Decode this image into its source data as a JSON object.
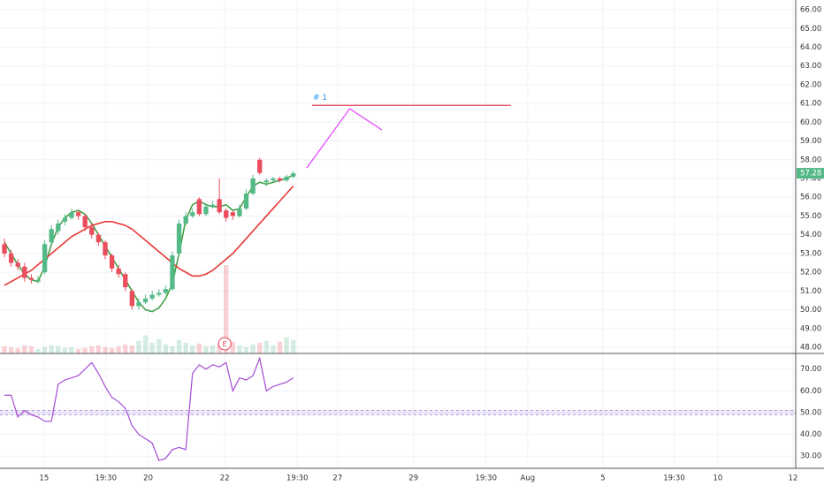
{
  "chart_data": [
    {
      "type": "candlestick",
      "xlim": [
        -0.66,
        117.8
      ],
      "xticks": [
        {
          "value": 5.9,
          "label": "15"
        },
        {
          "value": 15.1,
          "label": "19:30"
        },
        {
          "value": 21.4,
          "label": "20"
        },
        {
          "value": 32.8,
          "label": "22"
        },
        {
          "value": 43.6,
          "label": "19:30"
        },
        {
          "value": 49.6,
          "label": "27"
        },
        {
          "value": 60.9,
          "label": "29"
        },
        {
          "value": 71.7,
          "label": "19:30"
        },
        {
          "value": 77.9,
          "label": "Aug"
        },
        {
          "value": 89.1,
          "label": "5"
        },
        {
          "value": 99.7,
          "label": "19:30"
        },
        {
          "value": 106.2,
          "label": "10"
        },
        {
          "value": 117.4,
          "label": "12"
        }
      ],
      "ylim": [
        47.67,
        66.52
      ],
      "yticks": [
        {
          "value": 66,
          "label": "66.00"
        },
        {
          "value": 65,
          "label": "65.00"
        },
        {
          "value": 64,
          "label": "64.00"
        },
        {
          "value": 63,
          "label": "63.00"
        },
        {
          "value": 62,
          "label": "62.00"
        },
        {
          "value": 61,
          "label": "61.00"
        },
        {
          "value": 60,
          "label": "60.00"
        },
        {
          "value": 59,
          "label": "59.00"
        },
        {
          "value": 58,
          "label": "58.00"
        },
        {
          "value": 57,
          "label": "57.00"
        },
        {
          "value": 56,
          "label": "56.00"
        },
        {
          "value": 55,
          "label": "55.00"
        },
        {
          "value": 54,
          "label": "54.00"
        },
        {
          "value": 53,
          "label": "53.00"
        },
        {
          "value": 52,
          "label": "52.00"
        },
        {
          "value": 51,
          "label": "51.00"
        },
        {
          "value": 50,
          "label": "50.00"
        },
        {
          "value": 49,
          "label": "49.00"
        },
        {
          "value": 48,
          "label": "48.00"
        }
      ],
      "grid": true,
      "up_color": "#53b987",
      "down_color": "#eb4d5c",
      "open": [
        53.5,
        53.0,
        52.5,
        52.3,
        51.7,
        51.5,
        52.0,
        53.6,
        54.2,
        54.7,
        54.9,
        55.2,
        55.0,
        54.4,
        54.0,
        53.6,
        52.9,
        52.2,
        51.9,
        51.0,
        50.2,
        50.4,
        50.6,
        50.8,
        50.9,
        51.1,
        53.0,
        54.6,
        55.0,
        55.9,
        55.1,
        55.5,
        55.9,
        55.3,
        55.2,
        55.0,
        55.4,
        56.2,
        58.0,
        56.8,
        56.9,
        57.0,
        56.9,
        57.1
      ],
      "high": [
        53.8,
        53.2,
        52.7,
        52.5,
        51.9,
        51.8,
        53.7,
        54.5,
        54.8,
        55.1,
        55.4,
        55.3,
        55.1,
        54.6,
        54.1,
        53.7,
        53.0,
        52.4,
        52.0,
        51.1,
        50.6,
        50.8,
        51.0,
        51.1,
        51.3,
        53.1,
        54.8,
        55.2,
        55.4,
        56.0,
        55.7,
        55.8,
        57.0,
        55.4,
        55.3,
        55.6,
        56.4,
        57.2,
        58.1,
        57.0,
        57.1,
        57.1,
        57.2,
        57.4
      ],
      "low": [
        52.8,
        52.3,
        52.1,
        51.5,
        51.4,
        51.4,
        51.9,
        53.5,
        54.0,
        54.5,
        54.8,
        54.8,
        54.2,
        53.8,
        53.4,
        52.7,
        52.0,
        51.7,
        51.0,
        50.0,
        50.0,
        50.3,
        50.5,
        50.7,
        50.8,
        51.0,
        52.9,
        54.5,
        54.9,
        55.0,
        55.0,
        55.4,
        55.1,
        54.7,
        54.8,
        54.9,
        55.3,
        56.1,
        57.2,
        56.6,
        56.8,
        56.8,
        56.8,
        57.0
      ],
      "close": [
        53.0,
        52.5,
        52.3,
        51.7,
        51.6,
        51.6,
        53.5,
        54.3,
        54.6,
        54.9,
        55.2,
        55.0,
        54.4,
        54.0,
        53.6,
        52.9,
        52.2,
        51.9,
        51.2,
        50.2,
        50.4,
        50.6,
        50.8,
        50.9,
        51.1,
        52.9,
        54.6,
        55.0,
        55.2,
        55.1,
        55.5,
        55.6,
        55.2,
        54.9,
        55.0,
        55.4,
        56.2,
        57.0,
        57.3,
        56.9,
        57.0,
        56.9,
        57.1,
        57.28
      ],
      "volume": [
        0.8,
        0.7,
        0.6,
        0.9,
        0.8,
        0.5,
        0.7,
        0.9,
        0.8,
        0.6,
        0.7,
        0.5,
        0.6,
        0.8,
        0.9,
        0.7,
        0.6,
        0.8,
        1.0,
        0.9,
        1.4,
        2.0,
        1.2,
        1.6,
        1.0,
        0.8,
        1.5,
        1.2,
        0.9,
        1.1,
        0.8,
        0.9,
        1.0,
        9.8,
        1.3,
        0.9,
        0.7,
        1.0,
        1.2,
        1.4,
        0.9,
        1.3,
        1.8,
        1.5
      ],
      "moving_averages": [
        {
          "color": "#43a047",
          "values": [
            53.6,
            53.0,
            52.4,
            51.9,
            51.6,
            51.5,
            52.3,
            53.5,
            54.4,
            54.9,
            55.2,
            55.3,
            55.1,
            54.6,
            54.0,
            53.4,
            52.8,
            52.2,
            51.6,
            51.0,
            50.4,
            50.0,
            49.9,
            50.1,
            50.6,
            51.4,
            53.0,
            54.8,
            55.6,
            55.8,
            55.6,
            55.5,
            55.5,
            55.6,
            55.3,
            55.4,
            56.0,
            56.6,
            56.8,
            56.7,
            56.8,
            56.9,
            57.0,
            57.2
          ]
        },
        {
          "color": "#e53935",
          "values": [
            51.3,
            51.5,
            51.7,
            51.9,
            52.1,
            52.4,
            52.7,
            53.0,
            53.3,
            53.6,
            53.9,
            54.1,
            54.3,
            54.5,
            54.6,
            54.7,
            54.7,
            54.6,
            54.5,
            54.3,
            54.0,
            53.7,
            53.4,
            53.1,
            52.8,
            52.5,
            52.2,
            52.0,
            51.8,
            51.8,
            51.9,
            52.1,
            52.4,
            52.7,
            53.0,
            53.4,
            53.8,
            54.2,
            54.6,
            55.0,
            55.4,
            55.8,
            56.2,
            56.6
          ]
        }
      ],
      "projection": {
        "color": "#e040fb",
        "x": [
          45.0,
          51.4,
          56.2
        ],
        "y": [
          57.56,
          60.72,
          59.59
        ]
      },
      "level": {
        "label": "# 1",
        "label_color": "#2196f3",
        "color": "#e53950",
        "value": 60.9,
        "x": [
          45.8,
          75.4
        ]
      },
      "earnings_marker": {
        "label": "E",
        "x": 32.8,
        "color": "#e53950"
      }
    },
    {
      "type": "line",
      "ylim": [
        24.4,
        77.2
      ],
      "yticks": [
        {
          "value": 70,
          "label": "70.00"
        },
        {
          "value": 60,
          "label": "60.00"
        },
        {
          "value": 50,
          "label": "50.00"
        },
        {
          "value": 40,
          "label": "40.00"
        },
        {
          "value": 30,
          "label": "30.00"
        }
      ],
      "band": [
        49,
        51
      ],
      "band_color": "#9575cd",
      "color": "#a64bd3",
      "values": [
        58,
        58,
        48,
        51,
        49,
        48,
        46,
        46,
        63,
        65,
        66,
        67,
        70,
        73,
        68,
        62,
        57,
        55,
        52,
        44,
        40,
        38,
        36,
        28,
        29,
        33,
        34,
        33,
        68,
        72,
        70,
        72,
        71,
        73,
        60,
        66,
        65,
        67,
        75,
        60,
        62,
        63,
        64,
        66
      ]
    }
  ]
}
